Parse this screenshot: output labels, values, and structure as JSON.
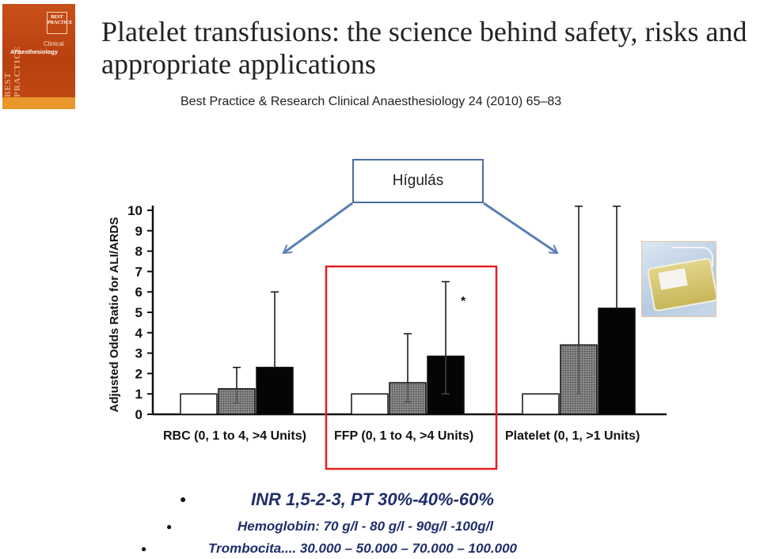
{
  "title": "Platelet transfusions: the science behind safety, risks and appropriate applications",
  "citation": "Best Practice & Research Clinical Anaesthesiology 24 (2010) 65–83",
  "cover": {
    "logo_text": "BEST PRACTICE",
    "subtitle": "Clinical",
    "journal": "Anaesthesiology",
    "colors": {
      "primary": "#c8501a",
      "band": "#e9962a"
    }
  },
  "callout": {
    "label": "Hígulás",
    "border_color": "#4a6da0"
  },
  "highlight_box_color": "#e02020",
  "bag_image": {
    "icon": "platelet-bag-photo"
  },
  "chart_data": {
    "type": "bar",
    "ylabel": "Adjusted Odds Ratio for ALI/ARDS",
    "ylim": [
      0,
      10
    ],
    "yticks": [
      "0",
      "1",
      "2",
      "3",
      "4",
      "5",
      "6",
      "7",
      "8",
      "9",
      "10"
    ],
    "groups": [
      {
        "label": "RBC (0, 1 to 4, >4 Units)",
        "values": [
          1,
          1.25,
          2.3
        ],
        "error_upper": [
          null,
          2.3,
          6.0
        ],
        "error_lower": [
          null,
          0.55,
          null
        ],
        "annotation": ""
      },
      {
        "label": "FFP (0, 1 to 4, >4 Units)",
        "values": [
          1,
          1.55,
          2.85
        ],
        "error_upper": [
          null,
          3.95,
          6.5
        ],
        "error_lower": [
          null,
          0.6,
          1.0
        ],
        "annotation": "*"
      },
      {
        "label": "Platelet (0, 1, >1 Units)",
        "values": [
          1,
          3.4,
          5.2
        ],
        "error_upper": [
          null,
          10.2,
          10.2
        ],
        "error_lower": [
          null,
          1.0,
          null
        ],
        "annotation": ""
      }
    ],
    "bar_styles": [
      "white",
      "gray-dotted",
      "black"
    ]
  },
  "bullets": [
    {
      "text": "INR 1,5-2-3, PT 30%-40%-60%"
    },
    {
      "text": "Hemoglobin: 70 g/l - 80 g/l - 90g/l -100g/l"
    },
    {
      "text": "Trombocita....   30.000 – 50.000 – 70.000 – 100.000"
    }
  ]
}
